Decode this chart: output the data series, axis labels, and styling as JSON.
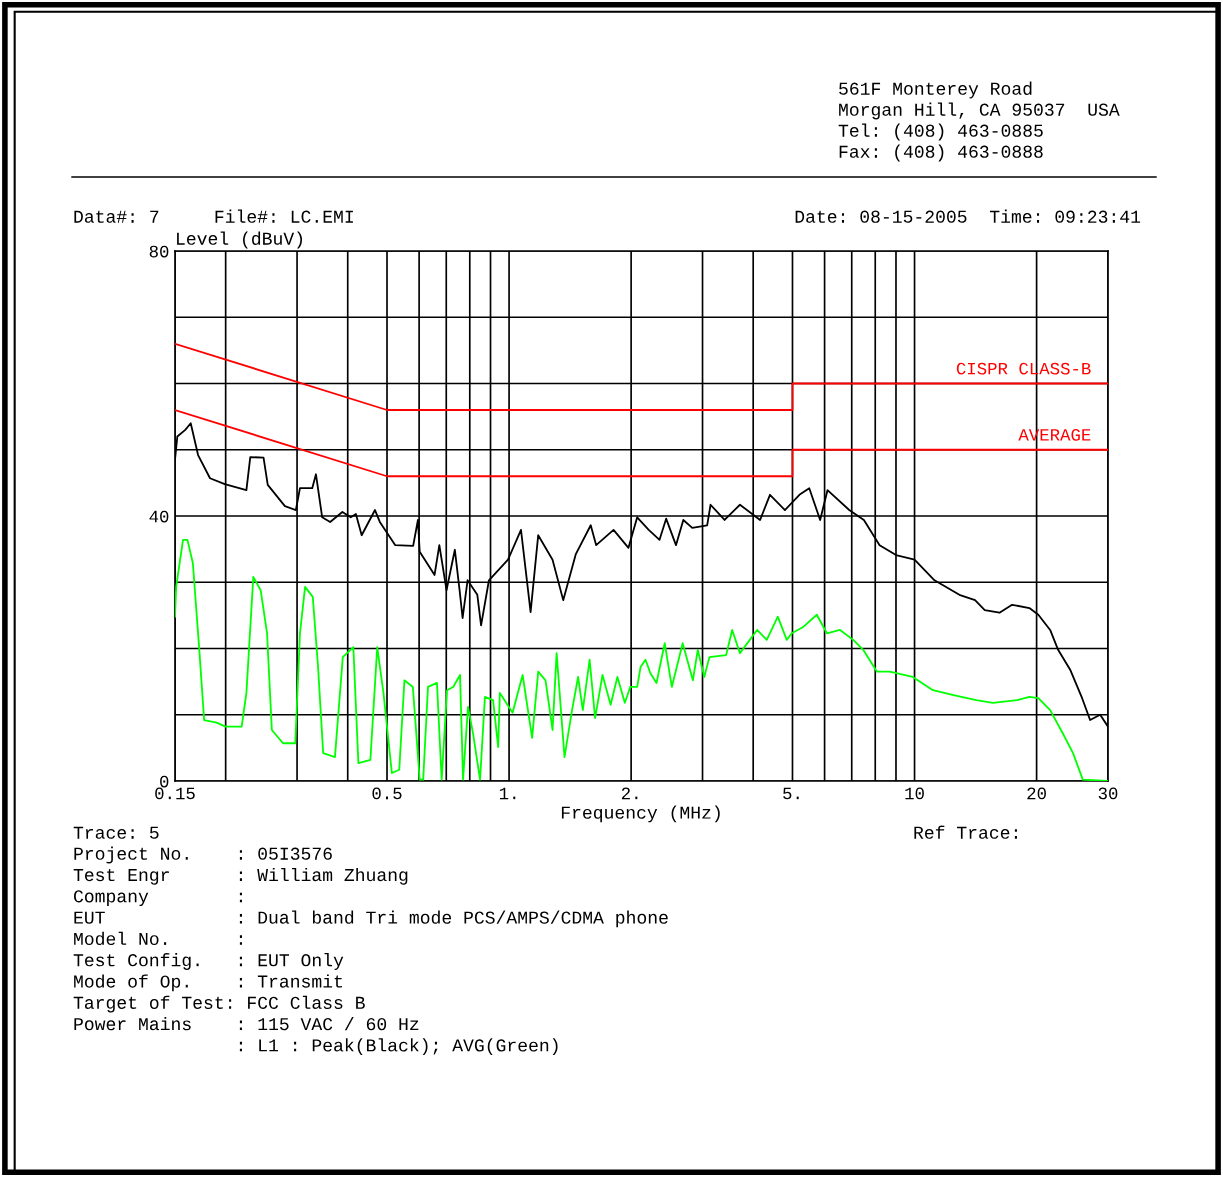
{
  "chart_data": {
    "type": "line",
    "xlabel": "Frequency (MHz)",
    "ylabel": "Level (dBuV)",
    "log": "x",
    "xlim": [
      0.15,
      30
    ],
    "ylim": [
      0,
      80
    ],
    "xticks": [
      {
        "value": 0.15,
        "label": "0.15"
      },
      {
        "value": 0.2,
        "label": null
      },
      {
        "value": 0.3,
        "label": null
      },
      {
        "value": 0.4,
        "label": null
      },
      {
        "value": 0.5,
        "label": "0.5"
      },
      {
        "value": 0.6,
        "label": null
      },
      {
        "value": 0.7,
        "label": null
      },
      {
        "value": 0.8,
        "label": null
      },
      {
        "value": 0.9,
        "label": null
      },
      {
        "value": 1,
        "label": "1."
      },
      {
        "value": 2,
        "label": "2."
      },
      {
        "value": 3,
        "label": null
      },
      {
        "value": 4,
        "label": null
      },
      {
        "value": 5,
        "label": "5."
      },
      {
        "value": 6,
        "label": null
      },
      {
        "value": 7,
        "label": null
      },
      {
        "value": 8,
        "label": null
      },
      {
        "value": 9,
        "label": null
      },
      10,
      20,
      30
    ],
    "yticks": [
      0,
      {
        "value": 10,
        "label": null
      },
      {
        "value": 20,
        "label": null
      },
      {
        "value": 30,
        "label": null
      },
      40,
      {
        "value": 50,
        "label": null
      },
      {
        "value": 60,
        "label": null
      },
      {
        "value": 70,
        "label": null
      },
      80
    ],
    "grid": true,
    "legend": false,
    "marker": "none",
    "line_style": "solid",
    "series": [
      {
        "name": "CISPR CLASS-B",
        "color": "#ff0000",
        "x": [
          0.15,
          0.5,
          5,
          5,
          30
        ],
        "values": [
          66,
          56,
          56,
          60,
          60
        ]
      },
      {
        "name": "AVERAGE",
        "color": "#ff0000",
        "x": [
          0.15,
          0.5,
          5,
          5,
          30
        ],
        "values": [
          56,
          46,
          46,
          50,
          50
        ]
      },
      {
        "color": "#000000",
        "x": [
          0.15,
          0.152,
          0.159,
          0.164,
          0.171,
          0.183,
          0.199,
          0.225,
          0.23,
          0.248,
          0.254,
          0.28,
          0.298,
          0.305,
          0.327,
          0.334,
          0.346,
          0.362,
          0.388,
          0.407,
          0.419,
          0.433,
          0.467,
          0.48,
          0.524,
          0.58,
          0.596,
          0.602,
          0.655,
          0.673,
          0.701,
          0.735,
          0.755,
          0.768,
          0.79,
          0.835,
          0.853,
          0.892,
          0.994,
          1.07,
          1.13,
          1.18,
          1.28,
          1.36,
          1.46,
          1.59,
          1.64,
          1.81,
          1.97,
          2.07,
          2.21,
          2.35,
          2.44,
          2.58,
          2.69,
          2.83,
          3.08,
          3.14,
          3.4,
          3.71,
          4.16,
          4.4,
          4.79,
          5.2,
          5.5,
          5.85,
          6.1,
          6.9,
          7.5,
          8.2,
          9.0,
          10.0,
          11.2,
          12.9,
          14.1,
          14.9,
          16.2,
          17.4,
          19.2,
          20.2,
          21.6,
          22.6,
          24.2,
          25.9,
          27.1,
          28.7,
          30
        ],
        "values": [
          48.5,
          52,
          53,
          54,
          49.2,
          45.7,
          44.8,
          43.9,
          48.9,
          48.8,
          44.7,
          41.5,
          40.9,
          44.2,
          44.2,
          46.3,
          39.8,
          39.1,
          40.6,
          39.8,
          40.3,
          37.1,
          40.9,
          39.1,
          35.6,
          35.5,
          39.4,
          34.6,
          31.1,
          35.6,
          28.8,
          34.9,
          28.8,
          24.6,
          30.3,
          28.1,
          23.5,
          30.3,
          33.4,
          37.9,
          25.5,
          37.1,
          33.4,
          27.3,
          34.2,
          38.6,
          35.6,
          37.9,
          35.2,
          39.8,
          37.9,
          36.4,
          39.6,
          35.6,
          39.4,
          38.2,
          38.6,
          41.7,
          39.4,
          41.7,
          39.4,
          43.2,
          40.9,
          43.2,
          44.2,
          39.4,
          43.9,
          40.9,
          39.4,
          35.6,
          34.1,
          33.4,
          30.3,
          28.1,
          27.3,
          25.8,
          25.4,
          26.6,
          26.1,
          25.1,
          22.8,
          19.8,
          16.8,
          12.5,
          9.2,
          10.0,
          8.2
        ]
      },
      {
        "color": "#00ff00",
        "x": [
          0.15,
          0.151,
          0.157,
          0.161,
          0.166,
          0.172,
          0.177,
          0.19,
          0.2,
          0.219,
          0.225,
          0.234,
          0.244,
          0.253,
          0.26,
          0.277,
          0.297,
          0.305,
          0.314,
          0.328,
          0.338,
          0.348,
          0.372,
          0.389,
          0.413,
          0.425,
          0.455,
          0.473,
          0.49,
          0.514,
          0.536,
          0.552,
          0.579,
          0.602,
          0.614,
          0.631,
          0.664,
          0.682,
          0.703,
          0.728,
          0.757,
          0.77,
          0.792,
          0.815,
          0.848,
          0.872,
          0.913,
          0.94,
          0.949,
          1.02,
          1.08,
          1.14,
          1.18,
          1.23,
          1.28,
          1.31,
          1.37,
          1.43,
          1.48,
          1.52,
          1.58,
          1.63,
          1.7,
          1.78,
          1.85,
          1.93,
          1.99,
          2.07,
          2.11,
          2.17,
          2.23,
          2.31,
          2.42,
          2.52,
          2.68,
          2.84,
          2.92,
          3.03,
          3.12,
          3.43,
          3.55,
          3.71,
          4.09,
          4.32,
          4.6,
          4.84,
          4.98,
          5.3,
          5.74,
          6.08,
          6.55,
          7.06,
          7.47,
          8.08,
          8.68,
          9.9,
          11.1,
          12.4,
          14.2,
          15.6,
          17.9,
          19.2,
          20.2,
          21.6,
          23.2,
          24.6,
          26.0,
          30
        ],
        "values": [
          24.8,
          29.3,
          36.4,
          36.4,
          32.9,
          20.2,
          9.2,
          8.8,
          8.2,
          8.2,
          13.3,
          30.8,
          28.8,
          22.3,
          7.7,
          5.7,
          5.7,
          22.3,
          29.3,
          27.8,
          17.2,
          4.2,
          3.6,
          18.7,
          20.2,
          2.7,
          3.2,
          20.2,
          13.3,
          1.2,
          1.7,
          15.2,
          14.2,
          0.2,
          0.2,
          14.2,
          14.8,
          0.2,
          13.7,
          14.2,
          16.0,
          0.2,
          11.2,
          7.2,
          0.2,
          12.7,
          12.2,
          5.1,
          13.3,
          10.3,
          16.0,
          6.5,
          16.5,
          15.2,
          7.7,
          19.3,
          3.6,
          10.7,
          15.7,
          10.7,
          18.3,
          9.5,
          16.0,
          11.5,
          15.7,
          11.8,
          14.2,
          14.2,
          17.2,
          18.3,
          16.3,
          14.8,
          20.8,
          14.2,
          20.8,
          15.2,
          19.8,
          15.7,
          18.7,
          19.0,
          22.8,
          19.3,
          22.8,
          21.3,
          24.8,
          21.3,
          22.3,
          23.2,
          25.1,
          22.3,
          22.8,
          21.3,
          19.8,
          16.5,
          16.5,
          15.7,
          13.7,
          13.0,
          12.2,
          11.8,
          12.2,
          12.7,
          12.5,
          10.7,
          7.2,
          4.2,
          0.2,
          0
        ]
      }
    ],
    "annotations": [
      "561F Monterey Road",
      "Morgan Hill, CA 95037  USA",
      "Tel: (408) 463-0885",
      "Fax: (408) 463-0888",
      "Data#: 7     File#: LC.EMI",
      "Date: 08-15-2005  Time: 09:23:41",
      "Trace: 5",
      "Ref Trace:",
      "Project No.    : 05I3576",
      "Test Engr      : William Zhuang",
      "Company        :",
      "EUT            : Dual band Tri mode PCS/AMPS/CDMA phone",
      "Model No.      :",
      "Test Config.   : EUT Only",
      "Mode of Op.    : Transmit",
      "Target of Test: FCC Class B",
      "Power Mains    : 115 VAC / 60 Hz",
      "               : L1 : Peak(Black); AVG(Green)"
    ]
  }
}
